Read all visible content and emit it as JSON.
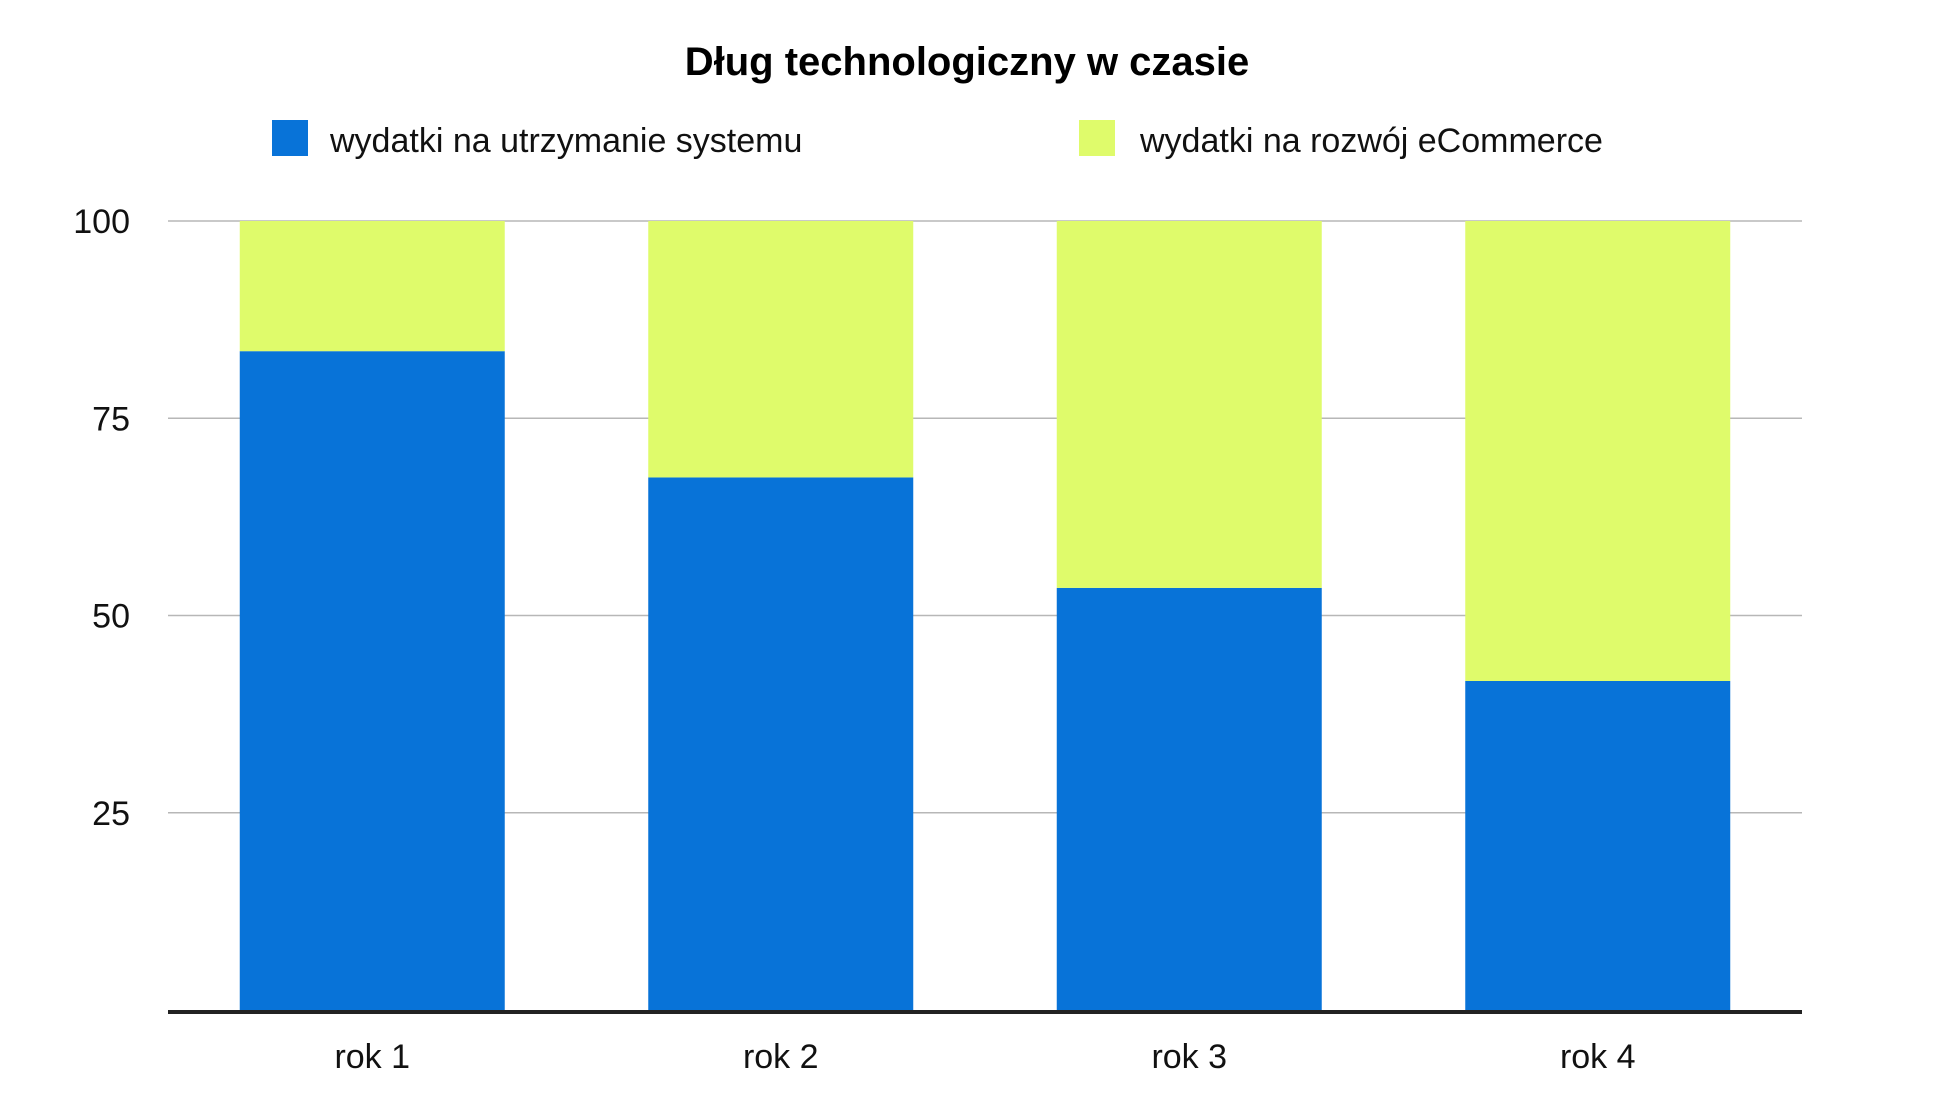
{
  "chart_data": {
    "type": "bar",
    "stacked": true,
    "title": "Dług technologiczny w czasie",
    "xlabel": "",
    "ylabel": "",
    "categories": [
      "rok 1",
      "rok 2",
      "rok 3",
      "rok 4"
    ],
    "series": [
      {
        "name": "wydatki na utrzymanie systemu",
        "color": "#0873d8",
        "values": [
          83.5,
          67.5,
          53.5,
          41.7
        ]
      },
      {
        "name": "wydatki na rozwój eCommerce",
        "color": "#dffb6b",
        "values": [
          16.5,
          32.5,
          46.5,
          58.3
        ]
      }
    ],
    "ylim": [
      0,
      100
    ],
    "yticks": [
      25,
      50,
      75,
      100
    ],
    "ytick_labels": [
      "25",
      "50",
      "75",
      "100"
    ],
    "grid": true,
    "legend_position": "top"
  }
}
